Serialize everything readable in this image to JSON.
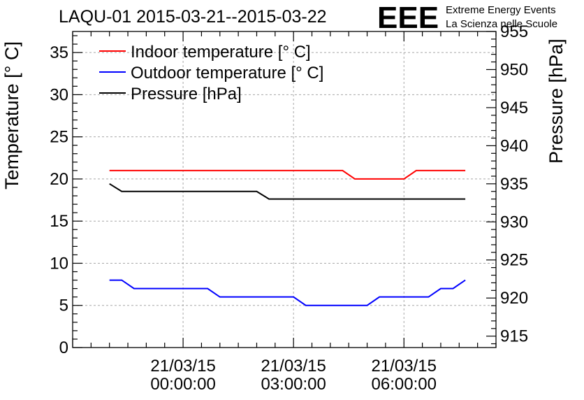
{
  "chart_data": {
    "type": "line",
    "title": "LAQU-01 2015-03-21--2015-03-22",
    "brand": {
      "logo": "EEE",
      "line1": "Extreme Energy Events",
      "line2": "La Scienza nelle Scuole"
    },
    "ylabel": "Temperature [° C]",
    "y2label": "Pressure [hPa]",
    "ylim": [
      0,
      37.5
    ],
    "y2lim": [
      913.5,
      955
    ],
    "yticks": [
      0,
      5,
      10,
      15,
      20,
      25,
      30,
      35
    ],
    "y2ticks": [
      915,
      920,
      925,
      930,
      935,
      940,
      945,
      950,
      955
    ],
    "xlim": [
      "2015-03-20 21:00",
      "2015-03-21 08:30"
    ],
    "xticks": [
      {
        "x": "2015-03-21 00:00",
        "line1": "21/03/15",
        "line2": "00:00:00"
      },
      {
        "x": "2015-03-21 03:00",
        "line1": "21/03/15",
        "line2": "03:00:00"
      },
      {
        "x": "2015-03-21 06:00",
        "line1": "21/03/15",
        "line2": "06:00:00"
      }
    ],
    "grid": true,
    "legend_position": "top-left",
    "series": [
      {
        "name": "Indoor temperature [° C]",
        "axis": "left",
        "color": "#ff0000",
        "points": [
          [
            "2015-03-20 22:00",
            21
          ],
          [
            "2015-03-21 03:30",
            21
          ],
          [
            "2015-03-21 04:20",
            21
          ],
          [
            "2015-03-21 04:40",
            20
          ],
          [
            "2015-03-21 06:00",
            20
          ],
          [
            "2015-03-21 06:20",
            21
          ],
          [
            "2015-03-21 07:40",
            21
          ]
        ]
      },
      {
        "name": "Outdoor temperature [° C]",
        "axis": "left",
        "color": "#0000ff",
        "points": [
          [
            "2015-03-20 22:00",
            8
          ],
          [
            "2015-03-20 22:20",
            8
          ],
          [
            "2015-03-20 22:40",
            7
          ],
          [
            "2015-03-21 00:40",
            7
          ],
          [
            "2015-03-21 01:00",
            6
          ],
          [
            "2015-03-21 03:00",
            6
          ],
          [
            "2015-03-21 03:20",
            5
          ],
          [
            "2015-03-21 04:40",
            5
          ],
          [
            "2015-03-21 05:00",
            5
          ],
          [
            "2015-03-21 05:20",
            6
          ],
          [
            "2015-03-21 06:40",
            6
          ],
          [
            "2015-03-21 07:00",
            7
          ],
          [
            "2015-03-21 07:20",
            7
          ],
          [
            "2015-03-21 07:40",
            8
          ]
        ]
      },
      {
        "name": "Pressure [hPa]",
        "axis": "right",
        "color": "#000000",
        "points": [
          [
            "2015-03-20 22:00",
            935
          ],
          [
            "2015-03-20 22:20",
            934
          ],
          [
            "2015-03-21 02:00",
            934
          ],
          [
            "2015-03-21 02:20",
            933
          ],
          [
            "2015-03-21 07:40",
            933
          ]
        ]
      }
    ]
  }
}
